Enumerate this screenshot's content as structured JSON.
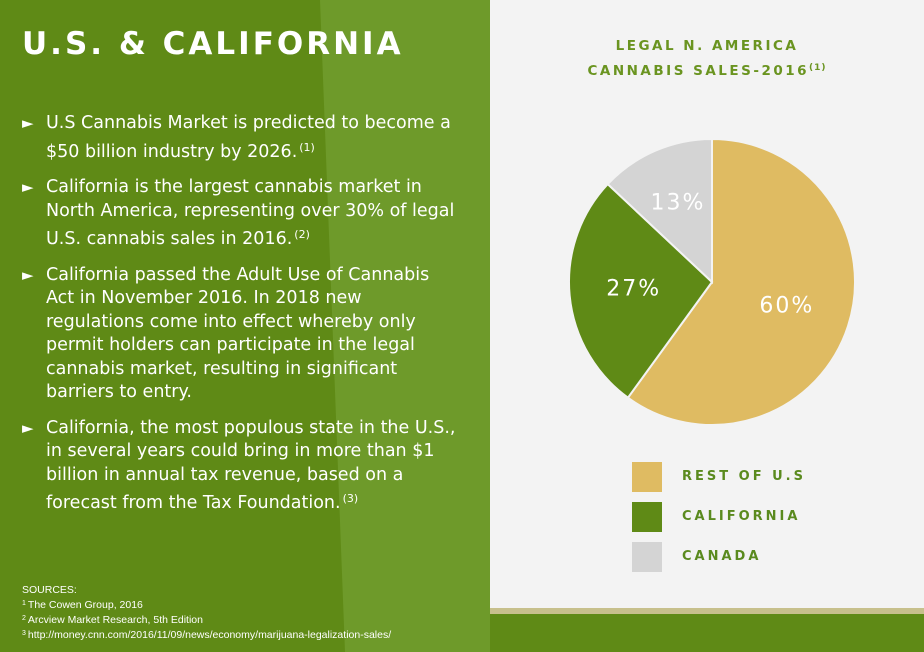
{
  "title": "U.S. & CALIFORNIA",
  "bullets": [
    {
      "text": "U.S Cannabis Market is predicted to become a $50 billion industry by 2026.",
      "sup": "(1)"
    },
    {
      "text": "California is the largest cannabis market in North America, representing over 30% of legal U.S. cannabis sales in 2016.",
      "sup": "(2)"
    },
    {
      "text": "California passed the Adult Use of Cannabis Act in November 2016. In 2018 new regulations come into effect whereby only permit holders can participate in the legal cannabis market, resulting in significant barriers to entry.",
      "sup": ""
    },
    {
      "text": "California, the most populous state in the U.S., in several years could bring in more than $1 billion in annual tax revenue, based on a forecast from the Tax Foundation.",
      "sup": "(3)"
    }
  ],
  "bullet_marker": "►",
  "sources": {
    "heading": "SOURCES:",
    "items": [
      {
        "num": "1",
        "text": "The Cowen Group, 2016"
      },
      {
        "num": "2",
        "text": "Arcview Market Research, 5th Edition"
      },
      {
        "num": "3",
        "text": "http://money.cnn.com/2016/11/09/news/economy/marijuana-legalization-sales/"
      }
    ]
  },
  "colors": {
    "green": "#5f8a16",
    "stripe": "#6e9a2a",
    "gold": "#dfbb62",
    "pie_green": "#5f8a16",
    "gray": "#d4d4d4",
    "title_green": "#6a9420",
    "panel_bg": "#f3f3f3"
  },
  "chart_data": {
    "type": "pie",
    "title_line1": "LEGAL N. AMERICA",
    "title_line2": "CANNABIS SALES-2016",
    "title_sup": "(1)",
    "slices": [
      {
        "label": "REST OF U.S",
        "value": 60,
        "display": "60%",
        "color": "#dfbb62"
      },
      {
        "label": "CALIFORNIA",
        "value": 27,
        "display": "27%",
        "color": "#5f8a16"
      },
      {
        "label": "CANADA",
        "value": 13,
        "display": "13%",
        "color": "#d4d4d4"
      }
    ],
    "legend_position": "bottom"
  }
}
